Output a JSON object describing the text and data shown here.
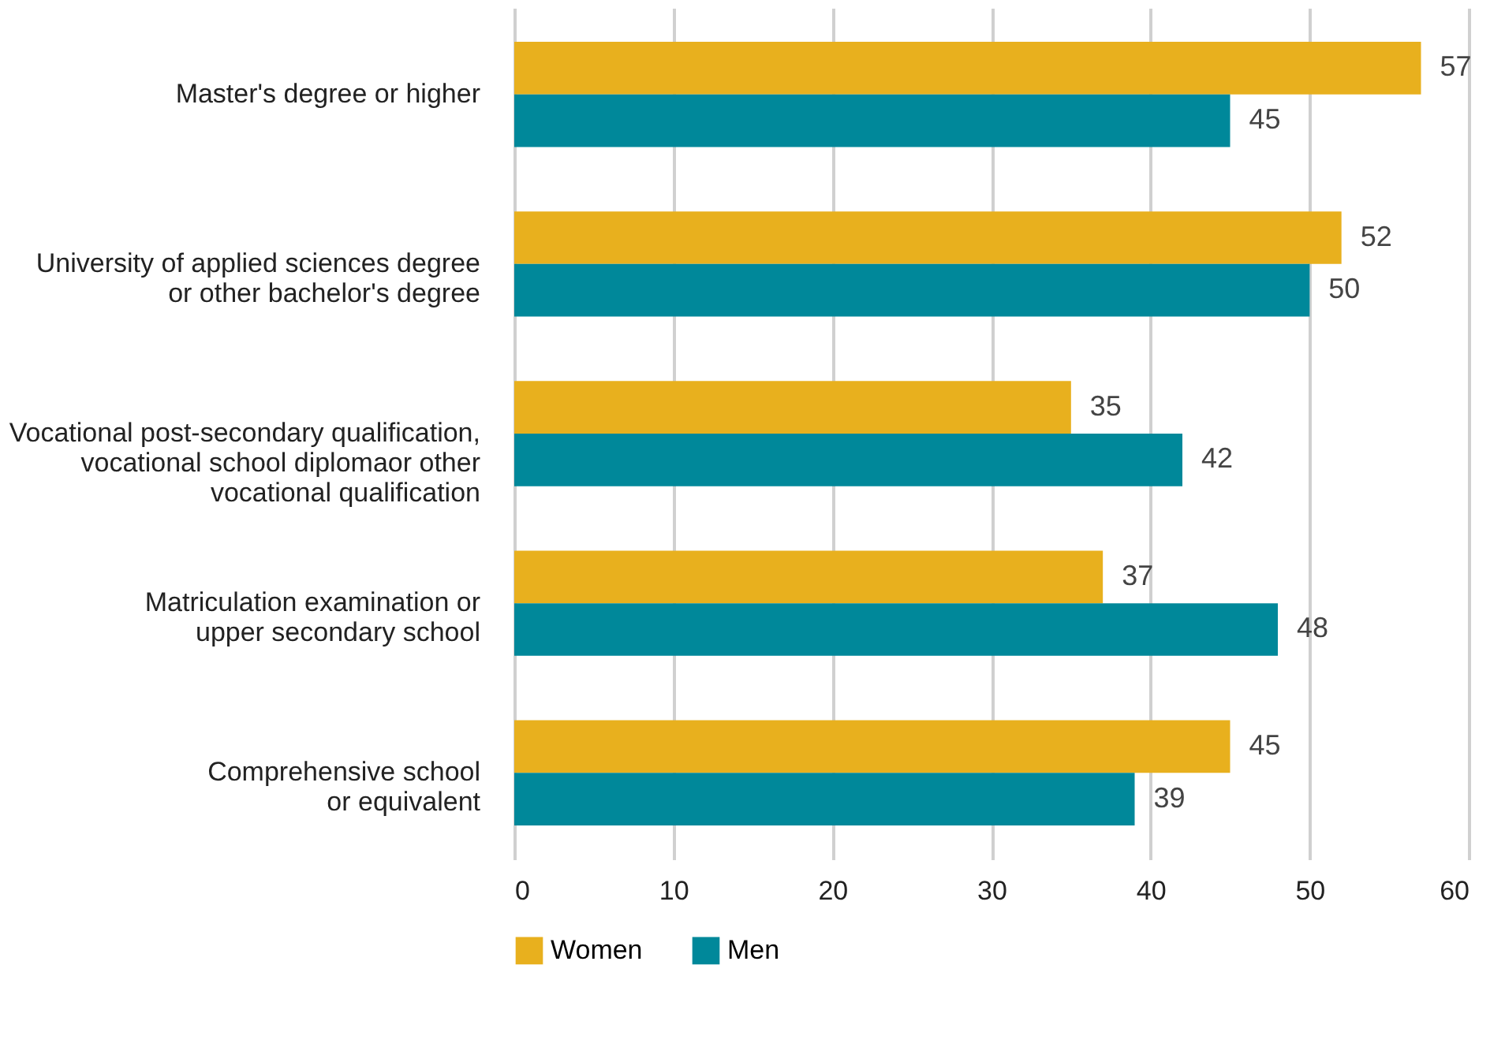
{
  "chart_data": {
    "type": "bar",
    "orientation": "horizontal",
    "categories": [
      "Master's degree or higher",
      "University of applied sciences degree\nor other bachelor's degree",
      "Vocational post-secondary qualification,\nvocational school diplomaor other\nvocational qualification",
      "Matriculation examination or\nupper secondary school",
      "Comprehensive school\nor equivalent"
    ],
    "series": [
      {
        "name": "Women",
        "color": "#e8b01e",
        "values": [
          57,
          52,
          35,
          37,
          45
        ]
      },
      {
        "name": "Men",
        "color": "#00889a",
        "values": [
          45,
          50,
          42,
          48,
          39
        ]
      }
    ],
    "xlim": [
      0,
      60
    ],
    "xticks": [
      0,
      10,
      20,
      30,
      40,
      50,
      60
    ],
    "grid": "x",
    "legend": "bottom",
    "data_labels": true
  }
}
